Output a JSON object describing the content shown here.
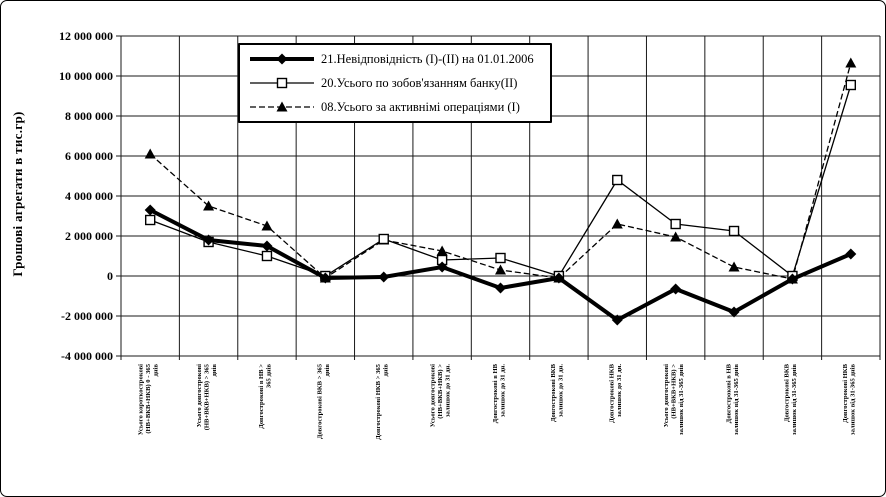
{
  "colors": {
    "line": "#000000",
    "background": "#ffffff"
  },
  "chart_data": {
    "type": "line",
    "title": "",
    "ylabel": "Грошові агрегати в тис.гр)",
    "xlabel": "",
    "grid": true,
    "legend_position": "top-inside-framed",
    "y_axis": {
      "min": -4000000,
      "max": 12000000,
      "step": 2000000,
      "tick_format": "space-grouped"
    },
    "categories": [
      [
        "Усього короткострокові",
        "(НВ+ВКВ+НКВ) 0 - 365",
        "днів"
      ],
      [
        "Усього довгострокові",
        "(НВ+ВКВ+НКВ) > 365",
        "днів"
      ],
      [
        "Довгострокові в НВ >",
        "365 днів"
      ],
      [
        "Довгострокові ВКВ > 365",
        "днів"
      ],
      [
        "Довгострокові НКВ > 365",
        "днів"
      ],
      [
        "Усього довгострокові",
        "(НВ+ВКВ+НКВ) >",
        "залишок до 31 дн."
      ],
      [
        "Довгострокові в НВ",
        "залишок до 31 дн."
      ],
      [
        "Довгострокові ВКВ",
        "залишок до 31 дн."
      ],
      [
        "Довгострокові НКВ",
        "залишок до 31 дн."
      ],
      [
        "Усього довгострокові",
        "(НВ+ВКВ+НКВ) >",
        "залишок від 31-365 днів"
      ],
      [
        "Довгострокові в НВ",
        "залишок від 31-365 днів"
      ],
      [
        "Довгострокові ВКВ",
        "залишок від 31-365 днів"
      ],
      [
        "Довгострокові НКВ",
        "залишок від 31-365 днів"
      ]
    ],
    "series": [
      {
        "name": "21.Невідповідність (І)-(ІІ) на 01.01.2006",
        "marker": "filled-diamond",
        "line": "thick-solid",
        "color": "#000000",
        "values": [
          3300000,
          1800000,
          1500000,
          -100000,
          -50000,
          450000,
          -600000,
          -100000,
          -2200000,
          -650000,
          -1800000,
          -150000,
          1100000
        ]
      },
      {
        "name": "20.Усього по зобов'язанням банку(ІІ)",
        "marker": "open-square",
        "line": "thin-solid",
        "color": "#000000",
        "values": [
          2800000,
          1700000,
          1000000,
          0,
          1850000,
          800000,
          900000,
          0,
          4800000,
          2600000,
          2250000,
          0,
          9550000
        ]
      },
      {
        "name": "08.Усього за активнімі операціями (І)",
        "marker": "filled-triangle",
        "line": "thin-dashed",
        "color": "#000000",
        "values": [
          6100000,
          3500000,
          2500000,
          -100000,
          1800000,
          1250000,
          300000,
          -100000,
          2600000,
          1950000,
          450000,
          -150000,
          10650000
        ]
      }
    ]
  }
}
